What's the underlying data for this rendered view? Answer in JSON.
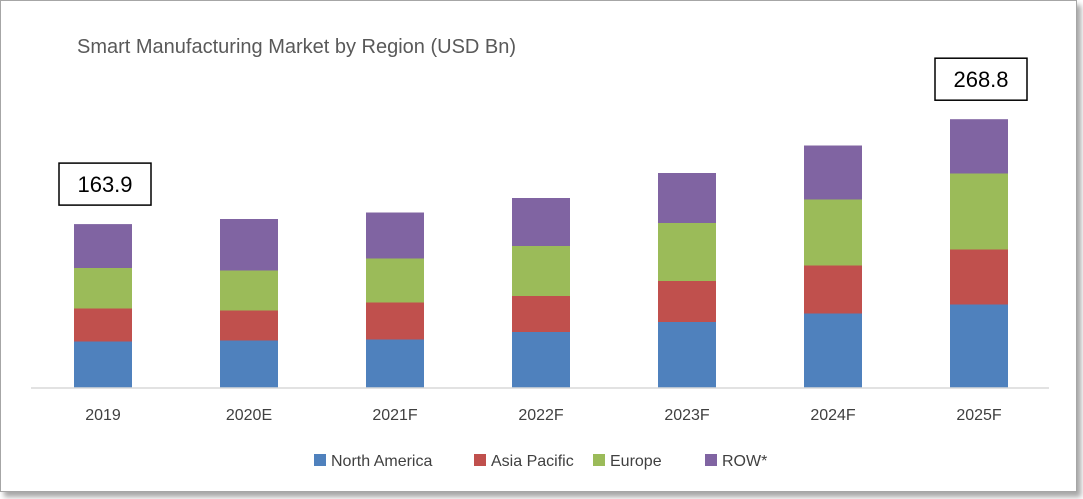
{
  "chart_data": {
    "type": "bar",
    "stacked": true,
    "title": "Smart Manufacturing Market by Region (USD Bn)",
    "categories": [
      "2019",
      "2020E",
      "2021F",
      "2022F",
      "2023F",
      "2024F",
      "2025F"
    ],
    "series": [
      {
        "name": "North America",
        "color": "#4f81bd",
        "values": [
          46.5,
          47.5,
          48.5,
          56.0,
          66.0,
          74.5,
          83.5
        ]
      },
      {
        "name": "Asia Pacific",
        "color": "#c0504d",
        "values": [
          33.0,
          30.0,
          37.0,
          36.0,
          41.0,
          48.0,
          55.0
        ]
      },
      {
        "name": "Europe",
        "color": "#9bbb59",
        "values": [
          40.5,
          40.0,
          44.0,
          50.0,
          58.0,
          66.0,
          76.0
        ]
      },
      {
        "name": "ROW*",
        "color": "#8064a2",
        "values": [
          43.9,
          51.5,
          46.0,
          48.0,
          50.0,
          54.0,
          54.3
        ]
      }
    ],
    "callouts": [
      {
        "category": "2019",
        "label": "163.9"
      },
      {
        "category": "2025F",
        "label": "268.8"
      }
    ],
    "ylim": [
      0,
      300
    ],
    "grid": false,
    "legend_position": "bottom"
  }
}
